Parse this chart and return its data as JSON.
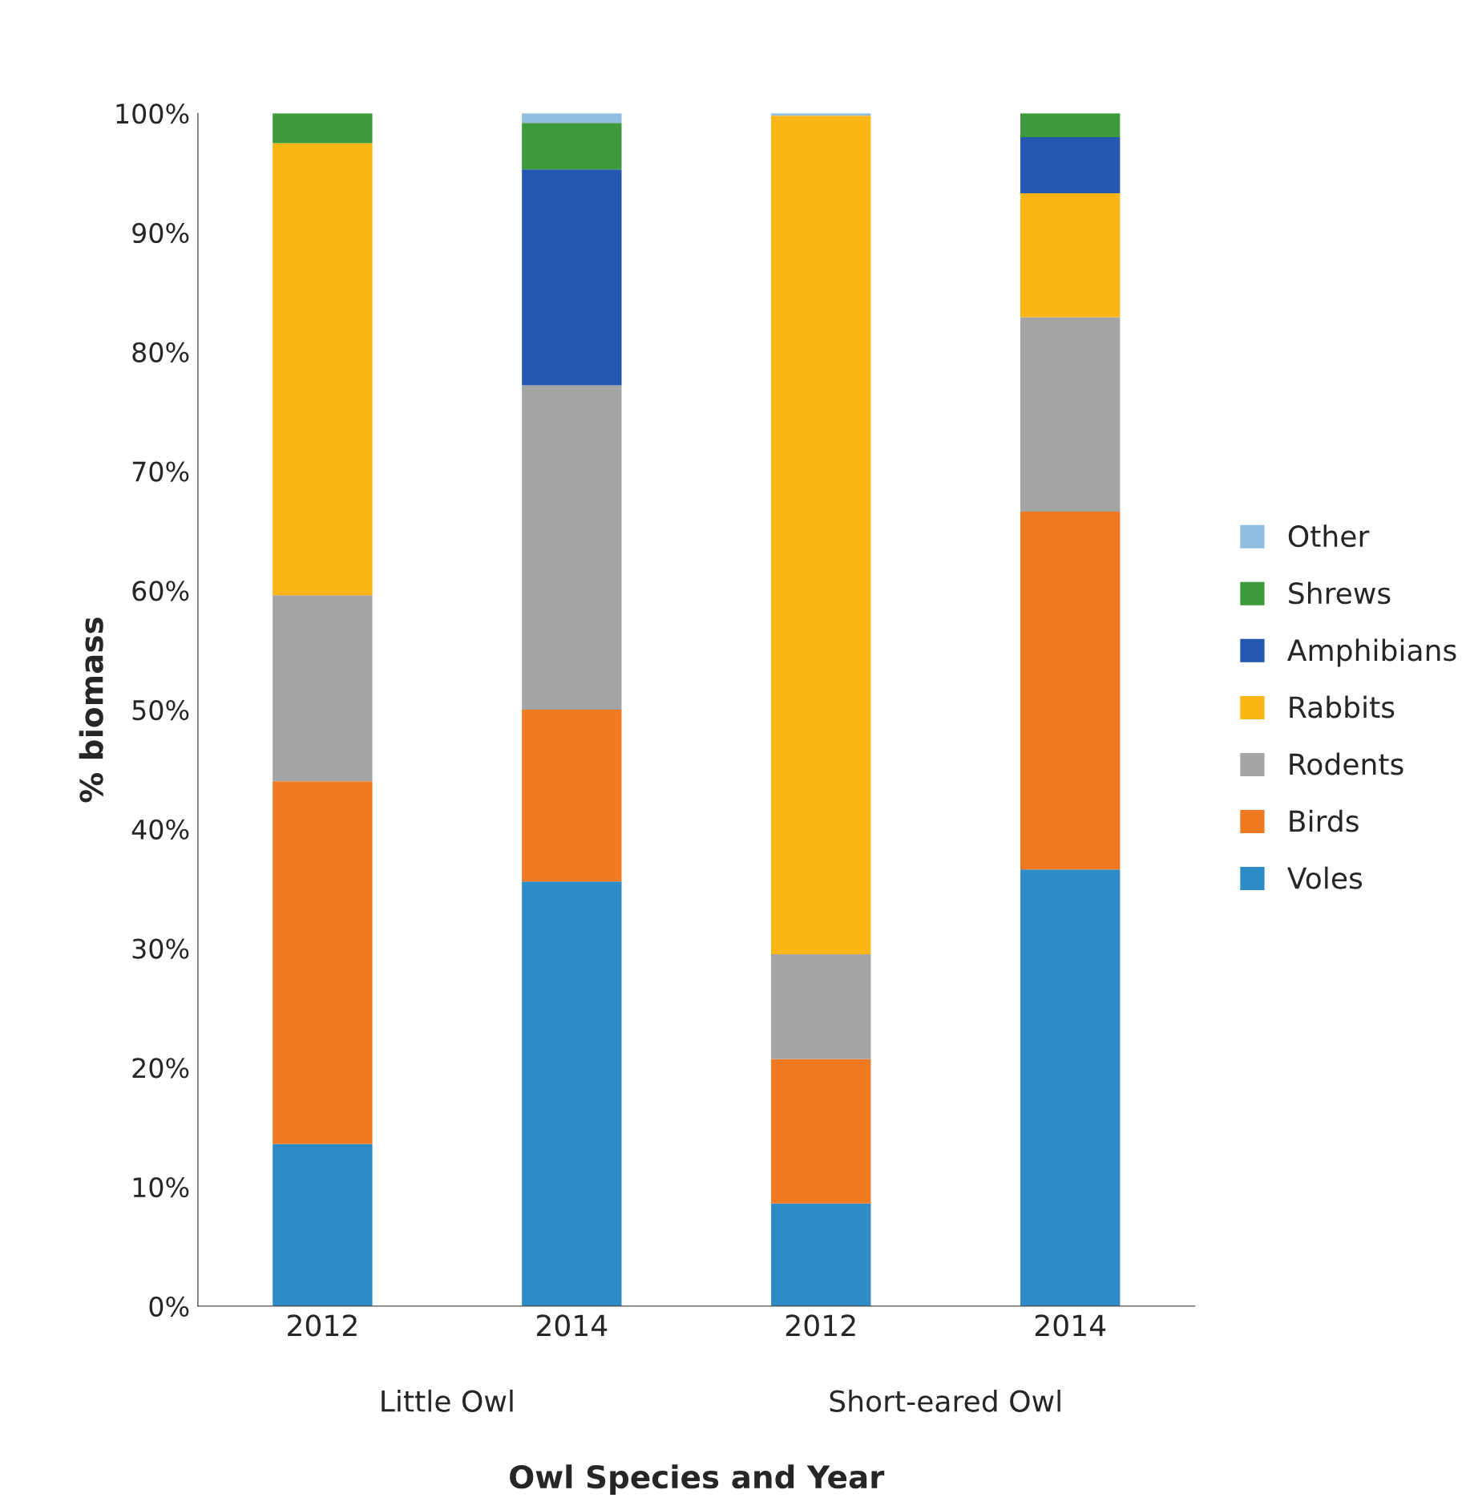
{
  "chart_data": {
    "type": "bar",
    "stacked": true,
    "xlabel": "Owl Species and Year",
    "ylabel": "% biomass",
    "categories": [
      "2012",
      "2014",
      "2012",
      "2014"
    ],
    "series": [
      {
        "name": "Voles",
        "color": "#2e8bc6",
        "values": [
          13.6,
          35.6,
          8.6,
          36.6
        ]
      },
      {
        "name": "Birds",
        "color": "#f07a22",
        "values": [
          30.4,
          14.4,
          12.1,
          30.0
        ]
      },
      {
        "name": "Rodents",
        "color": "#a5a5a5",
        "values": [
          15.6,
          27.2,
          8.8,
          16.3
        ]
      },
      {
        "name": "Rabbits",
        "color": "#fbb514",
        "values": [
          37.9,
          0,
          70.3,
          10.4
        ]
      },
      {
        "name": "Amphibians",
        "color": "#2457b0",
        "values": [
          0,
          18.1,
          0,
          4.7
        ]
      },
      {
        "name": "Shrews",
        "color": "#3c9a3c",
        "values": [
          2.5,
          3.9,
          0,
          2.0
        ]
      },
      {
        "name": "Other",
        "color": "#8fbde0",
        "values": [
          0,
          0.8,
          0.2,
          0
        ]
      }
    ],
    "ylim": [
      0,
      100
    ],
    "yticks": [
      {
        "value": 0,
        "label": "0%"
      },
      {
        "value": 10,
        "label": "10%"
      },
      {
        "value": 20,
        "label": "20%"
      },
      {
        "value": 30,
        "label": "30%"
      },
      {
        "value": 40,
        "label": "40%"
      },
      {
        "value": 50,
        "label": "50%"
      },
      {
        "value": 60,
        "label": "60%"
      },
      {
        "value": 70,
        "label": "70%"
      },
      {
        "value": 80,
        "label": "80%"
      },
      {
        "value": 90,
        "label": "90%"
      },
      {
        "value": 100,
        "label": "100%"
      }
    ],
    "annotations": [
      "Little Owl",
      "Short-eared Owl"
    ],
    "legend": "right",
    "grid": false
  }
}
